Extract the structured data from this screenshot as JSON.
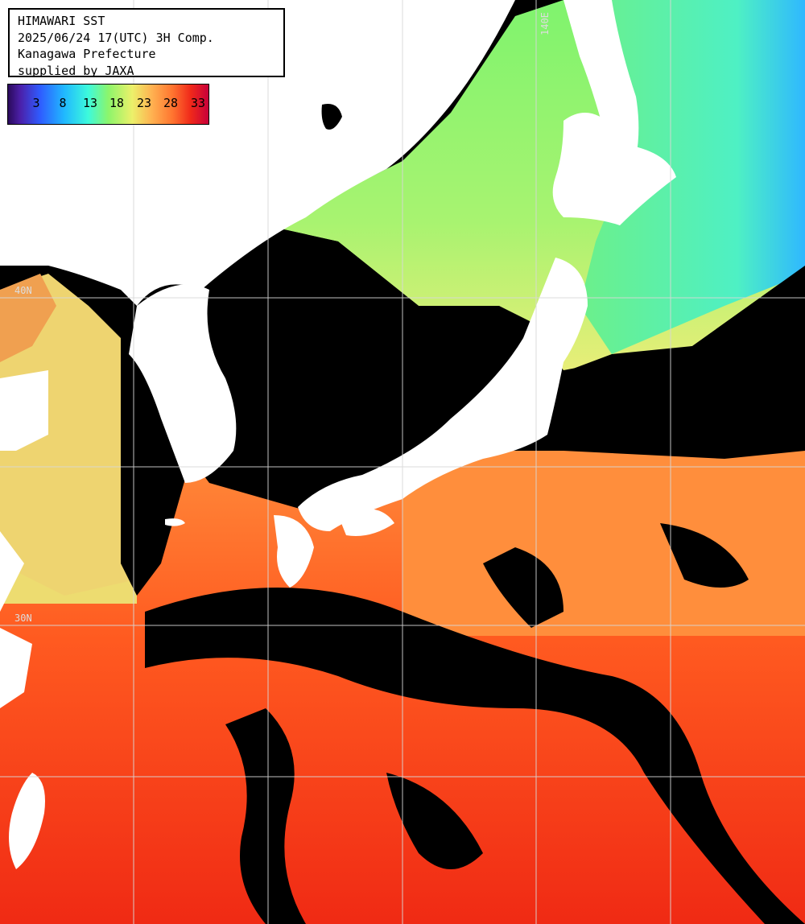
{
  "header": {
    "title": "HIMAWARI SST",
    "timestamp": "2025/06/24 17(UTC) 3H Comp.",
    "organization": "Kanagawa Prefecture",
    "credit": "supplied by JAXA"
  },
  "legend": {
    "ticks": [
      "3",
      "8",
      "13",
      "18",
      "23",
      "28",
      "33"
    ]
  },
  "grid": {
    "lon_label": "140E",
    "lat_labels": [
      "40N",
      "30N"
    ]
  },
  "colors": {
    "cold": "#2f5cff",
    "cool": "#3dfadc",
    "mild": "#8cf56b",
    "warm": "#ecf06a",
    "hot": "#ff7530",
    "veryhot": "#f02a1a",
    "cloud": "#000000",
    "land": "#ffffff"
  }
}
